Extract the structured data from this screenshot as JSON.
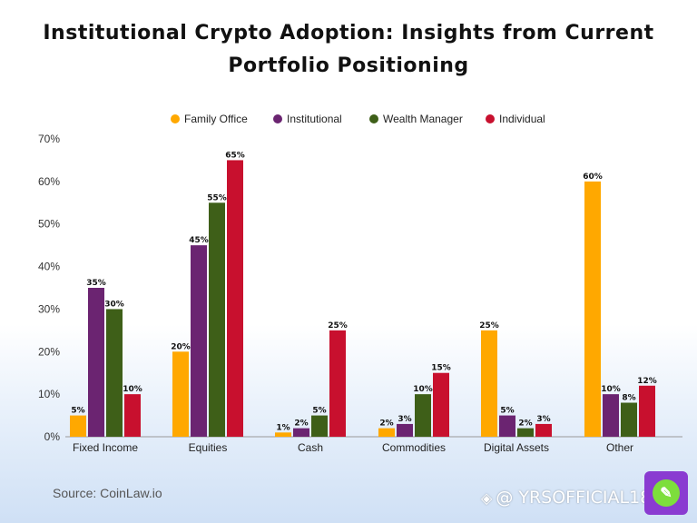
{
  "title_line1": "Institutional Crypto Adoption: Insights from Current",
  "title_line2": "Portfolio Positioning",
  "source": "Source: CoinLaw.io",
  "watermark": "@ YRSOFFICIAL18",
  "chart_data": {
    "type": "bar",
    "categories": [
      "Fixed Income",
      "Equities",
      "Cash",
      "Commodities",
      "Digital Assets",
      "Other"
    ],
    "series": [
      {
        "name": "Family Office",
        "color": "#ffa800",
        "values": [
          5,
          20,
          1,
          2,
          25,
          60
        ]
      },
      {
        "name": "Institutional",
        "color": "#6b2471",
        "values": [
          35,
          45,
          2,
          3,
          5,
          10
        ]
      },
      {
        "name": "Wealth Manager",
        "color": "#3e5f18",
        "values": [
          30,
          55,
          5,
          10,
          2,
          8
        ]
      },
      {
        "name": "Individual",
        "color": "#c8102e",
        "values": [
          10,
          65,
          25,
          15,
          3,
          12
        ]
      }
    ],
    "ylim": [
      0,
      70
    ],
    "yticks": [
      "0%",
      "10%",
      "20%",
      "30%",
      "40%",
      "50%",
      "60%",
      "70%"
    ],
    "value_suffix": "%",
    "legend_position": "top",
    "grid": false
  }
}
